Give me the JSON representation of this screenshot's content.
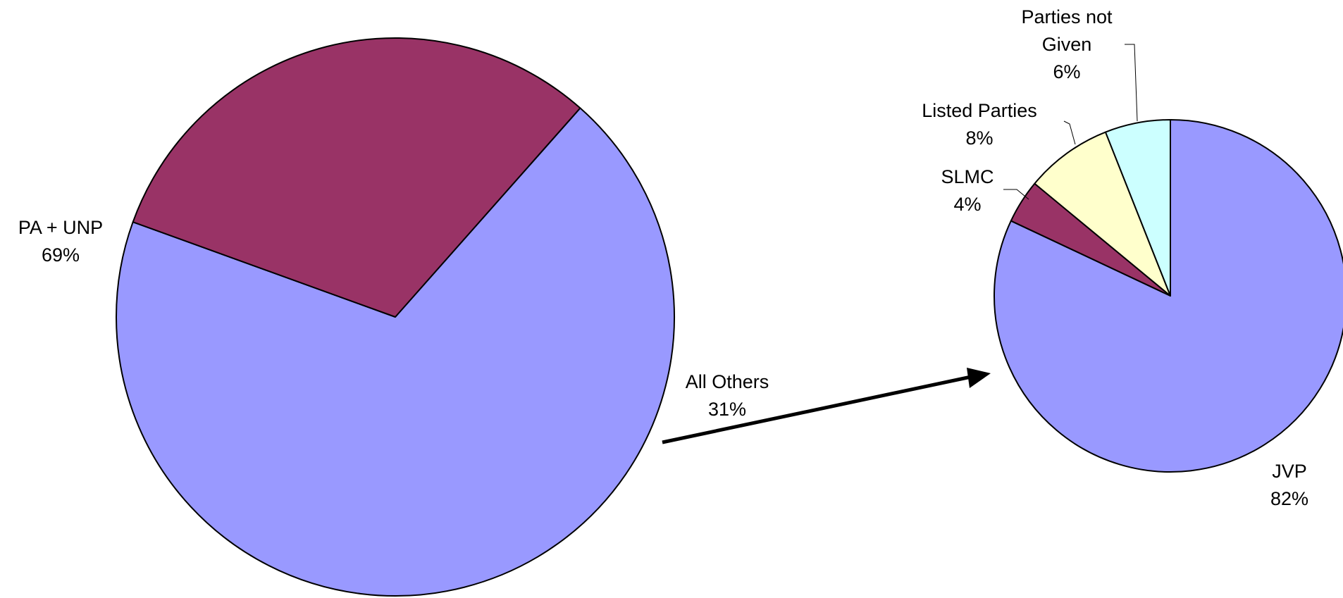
{
  "chart_data": [
    {
      "type": "pie",
      "slices": [
        {
          "label": "PA + UNP",
          "percent_label": "69%",
          "value": 69,
          "color": "#9999FF"
        },
        {
          "label": "All Others",
          "percent_label": "31%",
          "value": 31,
          "color": "#993366"
        }
      ]
    },
    {
      "type": "pie",
      "slices": [
        {
          "label": "JVP",
          "percent_label": "82%",
          "value": 82,
          "color": "#9999FF"
        },
        {
          "label": "SLMC",
          "percent_label": "4%",
          "value": 4,
          "color": "#993366"
        },
        {
          "label": "Listed Parties",
          "percent_label": "8%",
          "value": 8,
          "color": "#FFFFCC"
        },
        {
          "label": "Parties not Given",
          "percent_label": "6%",
          "value": 6,
          "color": "#CCFFFF"
        }
      ]
    }
  ]
}
